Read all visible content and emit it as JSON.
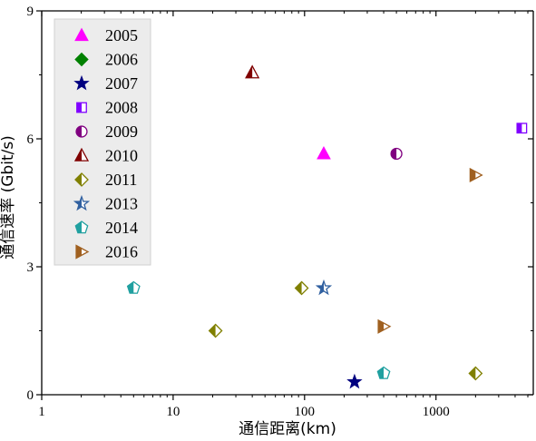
{
  "chart_data": {
    "type": "scatter",
    "title": "",
    "xlabel": "通信距离(km)",
    "ylabel": "通信速率 (Gbit/s)",
    "xscale": "log",
    "xlim": [
      1,
      5500
    ],
    "ylim": [
      0,
      9
    ],
    "xticks": [
      {
        "value": 1,
        "label": "1"
      },
      {
        "value": 10,
        "label": "10"
      },
      {
        "value": 100,
        "label": "100"
      },
      {
        "value": 1000,
        "label": "1000"
      }
    ],
    "yticks": [
      {
        "value": 0,
        "label": "0"
      },
      {
        "value": 3,
        "label": "3"
      },
      {
        "value": 6,
        "label": "6"
      },
      {
        "value": 9,
        "label": "9"
      }
    ],
    "legend_position": "top-left",
    "series": [
      {
        "name": "2005",
        "marker": "triangle",
        "style": "filled",
        "color": "#ff00ff",
        "points": [
          {
            "x": 140,
            "y": 5.65
          }
        ]
      },
      {
        "name": "2006",
        "marker": "diamond",
        "style": "filled",
        "color": "#008000",
        "points": []
      },
      {
        "name": "2007",
        "marker": "star",
        "style": "filled",
        "color": "#000080",
        "points": [
          {
            "x": 240,
            "y": 0.3
          }
        ]
      },
      {
        "name": "2008",
        "marker": "square",
        "style": "half-left",
        "color": "#8000ff",
        "points": [
          {
            "x": 4500,
            "y": 6.25
          }
        ]
      },
      {
        "name": "2009",
        "marker": "circle",
        "style": "half-left",
        "color": "#800080",
        "points": [
          {
            "x": 500,
            "y": 5.65
          }
        ]
      },
      {
        "name": "2010",
        "marker": "triangle",
        "style": "half-left",
        "color": "#800000",
        "points": [
          {
            "x": 40,
            "y": 7.55
          }
        ]
      },
      {
        "name": "2011",
        "marker": "diamond",
        "style": "half-left",
        "color": "#808000",
        "points": [
          {
            "x": 21,
            "y": 1.5
          },
          {
            "x": 95,
            "y": 2.5
          },
          {
            "x": 2000,
            "y": 0.5
          }
        ]
      },
      {
        "name": "2013",
        "marker": "star",
        "style": "half-left",
        "color": "#3060a0",
        "points": [
          {
            "x": 140,
            "y": 2.5
          }
        ]
      },
      {
        "name": "2014",
        "marker": "pentagon",
        "style": "half-left",
        "color": "#20a0a0",
        "points": [
          {
            "x": 5,
            "y": 2.5
          },
          {
            "x": 400,
            "y": 0.5
          }
        ]
      },
      {
        "name": "2016",
        "marker": "triangle-right",
        "style": "half-left",
        "color": "#a06020",
        "points": [
          {
            "x": 400,
            "y": 1.6
          },
          {
            "x": 2000,
            "y": 5.15
          }
        ]
      }
    ]
  }
}
